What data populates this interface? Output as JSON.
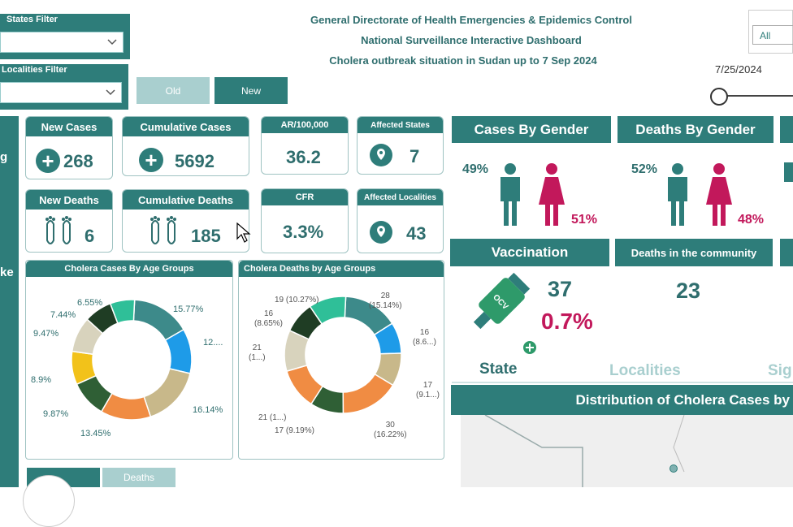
{
  "filters": {
    "states_label": "States Filter",
    "localities_label": "Localities Filter",
    "old_button": "Old",
    "new_button": "New",
    "all_label": "All",
    "date": "7/25/2024"
  },
  "header": {
    "line1": "General Directorate of Health Emergencies &  Epidemics Control",
    "line2": "National Surveillance Interactive Dashboard",
    "line3": "Cholera  outbreak situation in Sudan up to 7 Sep 2024"
  },
  "left_strip": {
    "text1": "g",
    "text2": "ke"
  },
  "kpis": {
    "new_cases": {
      "label": "New Cases",
      "value": "268"
    },
    "cumulative_cases": {
      "label": "Cumulative Cases",
      "value": "5692"
    },
    "ar": {
      "label": "AR/100,000",
      "value": "36.2"
    },
    "affected_states": {
      "label": "Affected States",
      "value": "7"
    },
    "new_deaths": {
      "label": "New Deaths",
      "value": "6"
    },
    "cumulative_deaths": {
      "label": "Cumulative Deaths",
      "value": "185"
    },
    "cfr": {
      "label": "CFR",
      "value": "3.3%"
    },
    "affected_localities": {
      "label": "Affected Localities",
      "value": "43"
    }
  },
  "gender": {
    "cases_title": "Cases By Gender",
    "deaths_title": "Deaths By Gender",
    "cases_male": "49%",
    "cases_female": "51%",
    "deaths_male": "52%",
    "deaths_female": "48%",
    "male_color": "#2e7d7a",
    "female_color": "#c2185b"
  },
  "vaccination": {
    "title": "Vaccination",
    "value": "37",
    "percent": "0.7%",
    "vial_label": "OCV"
  },
  "community": {
    "title": "Deaths in the community",
    "value": "23"
  },
  "tabs": {
    "state": "State",
    "localities": "Localities",
    "sig": "Sig"
  },
  "map": {
    "title": "Distribution of Cholera Cases by"
  },
  "bottom_tabs": {
    "deaths": "Deaths"
  },
  "colors": {
    "teal": "#2e7d7a",
    "pink": "#c2185b"
  },
  "chart_data": [
    {
      "type": "pie",
      "title": "Cholera Cases By Age Groups",
      "values": [
        15.77,
        12.0,
        16.14,
        13.45,
        9.87,
        8.9,
        9.47,
        7.44,
        6.55
      ],
      "labels": [
        "15.77%",
        "12....",
        "16.14%",
        "13.45%",
        "9.87%",
        "8.9%",
        "9.47%",
        "7.44%",
        "6.55%"
      ],
      "colors": [
        "#3d8a8a",
        "#1e9be8",
        "#c8b88a",
        "#f08c43",
        "#2f5f35",
        "#f2c21a",
        "#d8d3bd",
        "#1f3d24",
        "#2fbf98"
      ]
    },
    {
      "type": "pie",
      "title": "Cholera Deaths by Age Groups",
      "values": [
        15.14,
        8.6,
        9.1,
        16.22,
        9.19,
        11.35,
        11.35,
        8.65,
        10.27
      ],
      "labels": [
        "28\n(15.14%)",
        "16\n(8.6...)",
        "17\n(9.1...)",
        "30\n(16.22%)",
        "17 (9.19%)",
        "21 (1...)",
        "21\n(1...)",
        "16\n(8.65%)",
        "19 (10.27%)"
      ],
      "colors": [
        "#3d8a8a",
        "#1e9be8",
        "#c8b88a",
        "#f08c43",
        "#2f5f35",
        "#f08c43",
        "#d8d3bd",
        "#1f3d24",
        "#2fbf98"
      ]
    }
  ]
}
